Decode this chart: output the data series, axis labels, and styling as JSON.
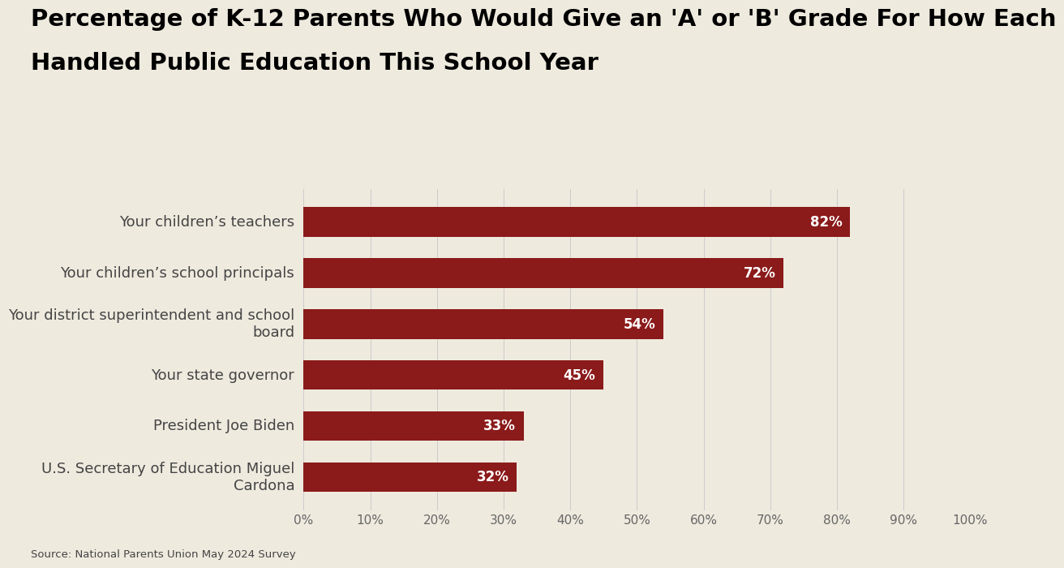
{
  "title_line1": "Percentage of K-12 Parents Who Would Give an 'A' or 'B' Grade For How Each",
  "title_line2": "Handled Public Education This School Year",
  "categories": [
    "Your children’s teachers",
    "Your children’s school principals",
    "Your district superintendent and school\nboard",
    "Your state governor",
    "President Joe Biden",
    "U.S. Secretary of Education Miguel\nCardona"
  ],
  "values": [
    82,
    72,
    54,
    45,
    33,
    32
  ],
  "bar_color": "#8B1A1A",
  "background_color": "#EEEADE",
  "title_fontsize": 21,
  "label_fontsize": 13,
  "value_fontsize": 12,
  "tick_fontsize": 11,
  "source_text": "Source: National Parents Union May 2024 Survey",
  "xlim": [
    0,
    100
  ],
  "xticks": [
    0,
    10,
    20,
    30,
    40,
    50,
    60,
    70,
    80,
    90,
    100
  ]
}
